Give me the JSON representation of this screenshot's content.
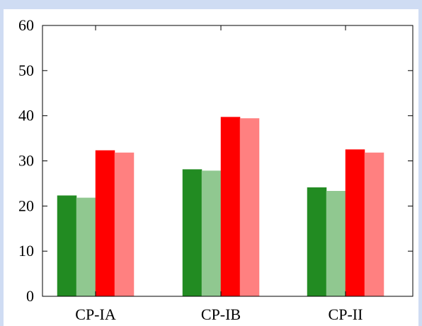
{
  "chart_data": {
    "type": "bar",
    "categories": [
      "CP-IA",
      "CP-IB",
      "CP-II"
    ],
    "series": [
      {
        "values": [
          22.3,
          28.1,
          24.1
        ],
        "color": "#228b22"
      },
      {
        "values": [
          21.8,
          27.8,
          23.3
        ],
        "color": "#90c890"
      },
      {
        "values": [
          32.3,
          39.7,
          32.5
        ],
        "color": "#ff0000"
      },
      {
        "values": [
          31.8,
          39.4,
          31.8
        ],
        "color": "#ff8080"
      }
    ],
    "title": "",
    "xlabel": "",
    "ylabel": "",
    "ylim": [
      0,
      60
    ],
    "yticks": [
      "0",
      "10",
      "20",
      "30",
      "40",
      "50",
      "60"
    ],
    "grid": false,
    "legend": "none"
  }
}
